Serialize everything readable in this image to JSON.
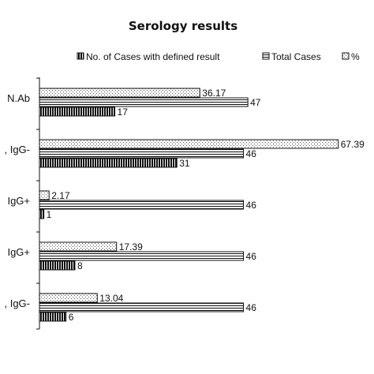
{
  "chart_data": {
    "type": "bar",
    "orientation": "horizontal",
    "title": "Serology results",
    "categories": [
      "N.Ab",
      ", IgG-",
      "IgG+",
      "IgG+",
      ", IgG-"
    ],
    "series": [
      {
        "name": "No. of Cases with defined result",
        "values": [
          17,
          31,
          1,
          8,
          6
        ],
        "labels": [
          "17",
          "31",
          "1",
          "8",
          "6"
        ],
        "pattern": "vertical-stripes"
      },
      {
        "name": "Total Cases",
        "values": [
          47,
          46,
          46,
          46,
          46
        ],
        "labels": [
          "47",
          "46",
          "46",
          "46",
          "46"
        ],
        "pattern": "horizontal-stripes"
      },
      {
        "name": "%",
        "values": [
          36.17,
          67.39,
          2.17,
          17.39,
          13.04
        ],
        "labels": [
          "36.17",
          "67.39",
          "2.17",
          "17.39",
          "13.04"
        ],
        "pattern": "dots"
      }
    ],
    "legend_position": "top",
    "xlim": [
      0,
      70
    ],
    "grid": false
  }
}
